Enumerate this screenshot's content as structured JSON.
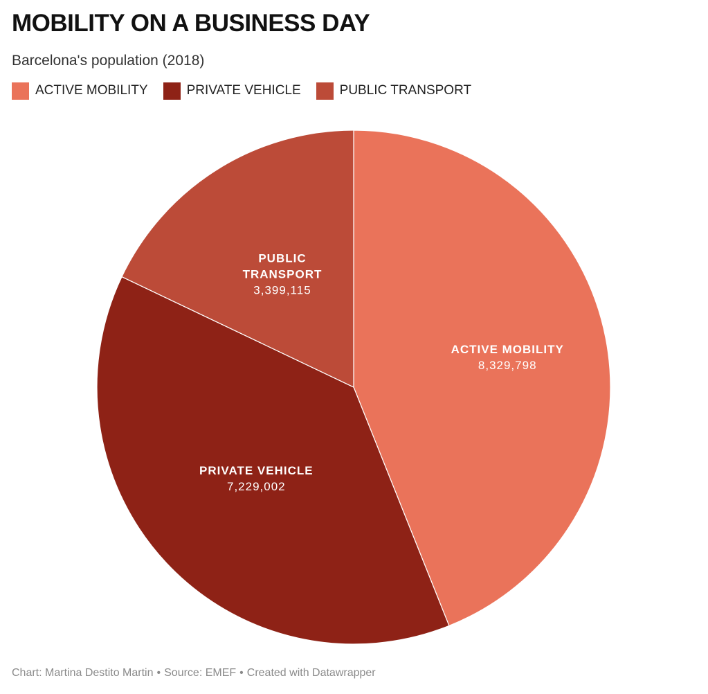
{
  "header": {
    "title": "MOBILITY ON A BUSINESS DAY",
    "subtitle": "Barcelona's population (2018)"
  },
  "legend": [
    {
      "label": "ACTIVE MOBILITY",
      "color": "#ea735a"
    },
    {
      "label": "PRIVATE VEHICLE",
      "color": "#8e2216"
    },
    {
      "label": "PUBLIC TRANSPORT",
      "color": "#bc4b38"
    }
  ],
  "chart_data": {
    "type": "pie",
    "title": "MOBILITY ON A BUSINESS DAY",
    "subtitle": "Barcelona's population (2018)",
    "start": "12 o'clock",
    "direction": "clockwise",
    "slices": [
      {
        "label": "ACTIVE MOBILITY",
        "label_lines": [
          "ACTIVE MOBILITY"
        ],
        "value": 8329798,
        "value_text": "8,329,798",
        "color": "#ea735a"
      },
      {
        "label": "PRIVATE VEHICLE",
        "label_lines": [
          "PRIVATE VEHICLE"
        ],
        "value": 7229002,
        "value_text": "7,229,002",
        "color": "#8e2216"
      },
      {
        "label": "PUBLIC TRANSPORT",
        "label_lines": [
          "PUBLIC",
          "TRANSPORT"
        ],
        "value": 3399115,
        "value_text": "3,399,115",
        "color": "#bc4b38"
      }
    ]
  },
  "footer": {
    "chart_credit": "Chart: Martina Destito Martin",
    "source": "Source: EMEF",
    "created_with": "Created with Datawrapper",
    "separator": "•"
  }
}
